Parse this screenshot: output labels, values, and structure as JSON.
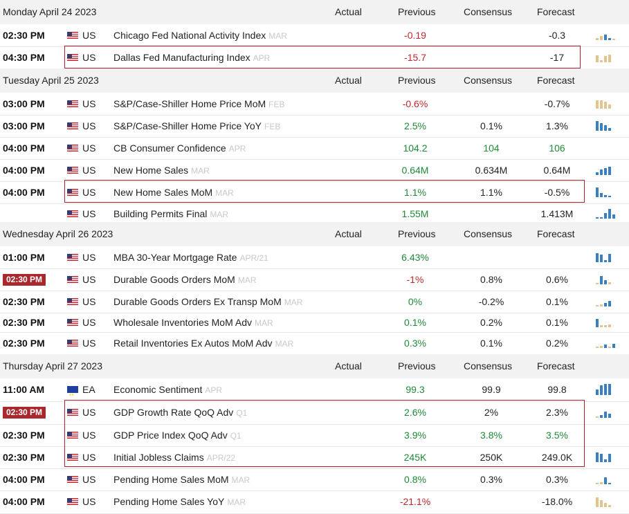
{
  "columns": {
    "actual": "Actual",
    "previous": "Previous",
    "consensus": "Consensus",
    "forecast": "Forecast"
  },
  "days": [
    {
      "label": "Monday April 24 2023",
      "events": [
        {
          "time": "02:30 PM",
          "flag": "us-flag-icon",
          "cur": "US",
          "name": "Chicago Fed National Activity Index",
          "period": "MAR",
          "actual": "",
          "previous": "-0.19",
          "prev_color": "red",
          "consensus": "",
          "cons_color": "black",
          "forecast": "-0.3",
          "spark": "chicago-fed-sparkline"
        },
        {
          "time": "04:30 PM",
          "flag": "us-flag-icon",
          "cur": "US",
          "name": "Dallas Fed Manufacturing Index",
          "period": "APR",
          "actual": "",
          "previous": "-15.7",
          "prev_color": "red",
          "consensus": "",
          "cons_color": "black",
          "forecast": "-17",
          "spark": "dallas-fed-sparkline"
        }
      ]
    },
    {
      "label": "Tuesday April 25 2023",
      "events": [
        {
          "time": "03:00 PM",
          "flag": "us-flag-icon",
          "cur": "US",
          "name": "S&P/Case-Shiller Home Price MoM",
          "period": "FEB",
          "actual": "",
          "previous": "-0.6%",
          "prev_color": "red",
          "consensus": "",
          "cons_color": "black",
          "forecast": "-0.7%",
          "spark": "case-shiller-mom-sparkline"
        },
        {
          "time": "03:00 PM",
          "flag": "us-flag-icon",
          "cur": "US",
          "name": "S&P/Case-Shiller Home Price YoY",
          "period": "FEB",
          "actual": "",
          "previous": "2.5%",
          "prev_color": "green",
          "consensus": "0.1%",
          "cons_color": "black",
          "forecast": "1.3%",
          "spark": "case-shiller-yoy-sparkline"
        },
        {
          "time": "04:00 PM",
          "flag": "us-flag-icon",
          "cur": "US",
          "name": "CB Consumer Confidence",
          "period": "APR",
          "actual": "",
          "previous": "104.2",
          "prev_color": "green",
          "consensus": "104",
          "cons_color": "green",
          "forecast": "106",
          "forecast_color": "green",
          "spark": ""
        },
        {
          "time": "04:00 PM",
          "flag": "us-flag-icon",
          "cur": "US",
          "name": "New Home Sales",
          "period": "MAR",
          "actual": "",
          "previous": "0.64M",
          "prev_color": "green",
          "consensus": "0.634M",
          "cons_color": "black",
          "forecast": "0.64M",
          "spark": "new-home-sales-sparkline"
        },
        {
          "time": "04:00 PM",
          "flag": "us-flag-icon",
          "cur": "US",
          "name": "New Home Sales MoM",
          "period": "MAR",
          "actual": "",
          "previous": "1.1%",
          "prev_color": "green",
          "consensus": "1.1%",
          "cons_color": "black",
          "forecast": "-0.5%",
          "spark": "new-home-sales-mom-sparkline"
        },
        {
          "time": "",
          "flag": "us-flag-icon",
          "cur": "US",
          "name": "Building Permits Final",
          "period": "MAR",
          "actual": "",
          "previous": "1.55M",
          "prev_color": "green",
          "consensus": "",
          "cons_color": "black",
          "forecast": "1.413M",
          "spark": "building-permits-sparkline"
        }
      ]
    },
    {
      "label": "Wednesday April 26 2023",
      "events": [
        {
          "time": "01:00 PM",
          "flag": "us-flag-icon",
          "cur": "US",
          "name": "MBA 30-Year Mortgage Rate",
          "period": "APR/21",
          "actual": "",
          "previous": "6.43%",
          "prev_color": "green",
          "consensus": "",
          "cons_color": "black",
          "forecast": "",
          "spark": "mba-mortgage-sparkline"
        },
        {
          "time": "02:30 PM",
          "badge": true,
          "flag": "us-flag-icon",
          "cur": "US",
          "name": "Durable Goods Orders MoM",
          "period": "MAR",
          "actual": "",
          "previous": "-1%",
          "prev_color": "red",
          "consensus": "0.8%",
          "cons_color": "black",
          "forecast": "0.6%",
          "spark": "durable-goods-sparkline"
        },
        {
          "time": "02:30 PM",
          "flag": "us-flag-icon",
          "cur": "US",
          "name": "Durable Goods Orders Ex Transp MoM",
          "period": "MAR",
          "actual": "",
          "previous": "0%",
          "prev_color": "green",
          "consensus": "-0.2%",
          "cons_color": "black",
          "forecast": "0.1%",
          "spark": "durable-ex-transp-sparkline"
        },
        {
          "time": "02:30 PM",
          "flag": "us-flag-icon",
          "cur": "US",
          "name": "Wholesale Inventories MoM Adv",
          "period": "MAR",
          "actual": "",
          "previous": "0.1%",
          "prev_color": "green",
          "consensus": "0.2%",
          "cons_color": "black",
          "forecast": "0.1%",
          "spark": "wholesale-inv-sparkline"
        },
        {
          "time": "02:30 PM",
          "flag": "us-flag-icon",
          "cur": "US",
          "name": "Retail Inventories Ex Autos MoM Adv",
          "period": "MAR",
          "actual": "",
          "previous": "0.3%",
          "prev_color": "green",
          "consensus": "0.1%",
          "cons_color": "black",
          "forecast": "0.2%",
          "spark": "retail-inv-sparkline"
        }
      ]
    },
    {
      "label": "Thursday April 27 2023",
      "events": [
        {
          "time": "11:00 AM",
          "flag": "eu-flag-icon",
          "cur": "EA",
          "name": "Economic Sentiment",
          "period": "APR",
          "actual": "",
          "previous": "99.3",
          "prev_color": "green",
          "consensus": "99.9",
          "cons_color": "black",
          "forecast": "99.8",
          "spark": "economic-sentiment-sparkline"
        },
        {
          "time": "02:30 PM",
          "badge": true,
          "flag": "us-flag-icon",
          "cur": "US",
          "name": "GDP Growth Rate QoQ Adv",
          "period": "Q1",
          "actual": "",
          "previous": "2.6%",
          "prev_color": "green",
          "consensus": "2%",
          "cons_color": "black",
          "forecast": "2.3%",
          "spark": "gdp-growth-sparkline"
        },
        {
          "time": "02:30 PM",
          "flag": "us-flag-icon",
          "cur": "US",
          "name": "GDP Price Index QoQ Adv",
          "period": "Q1",
          "actual": "",
          "previous": "3.9%",
          "prev_color": "green",
          "consensus": "3.8%",
          "cons_color": "green",
          "forecast": "3.5%",
          "forecast_color": "green",
          "spark": ""
        },
        {
          "time": "02:30 PM",
          "flag": "us-flag-icon",
          "cur": "US",
          "name": "Initial Jobless Claims",
          "period": "APR/22",
          "actual": "",
          "previous": "245K",
          "prev_color": "green",
          "consensus": "250K",
          "cons_color": "black",
          "forecast": "249.0K",
          "spark": "jobless-claims-sparkline"
        },
        {
          "time": "04:00 PM",
          "flag": "us-flag-icon",
          "cur": "US",
          "name": "Pending Home Sales MoM",
          "period": "MAR",
          "actual": "",
          "previous": "0.8%",
          "prev_color": "green",
          "consensus": "0.3%",
          "cons_color": "black",
          "forecast": "0.3%",
          "spark": "pending-home-mom-sparkline"
        },
        {
          "time": "04:00 PM",
          "flag": "us-flag-icon",
          "cur": "US",
          "name": "Pending Home Sales YoY",
          "period": "MAR",
          "actual": "",
          "previous": "-21.1%",
          "prev_color": "red",
          "consensus": "",
          "cons_color": "black",
          "forecast": "-18.0%",
          "spark": "pending-home-yoy-sparkline"
        }
      ]
    }
  ],
  "colors": {
    "red": "#c0272d",
    "green": "#1e8a35",
    "badge": "#a8282d",
    "bar_blue": "#3a7fc1",
    "bar_tan": "#e2c48e",
    "highlight": "#b01e2b"
  }
}
